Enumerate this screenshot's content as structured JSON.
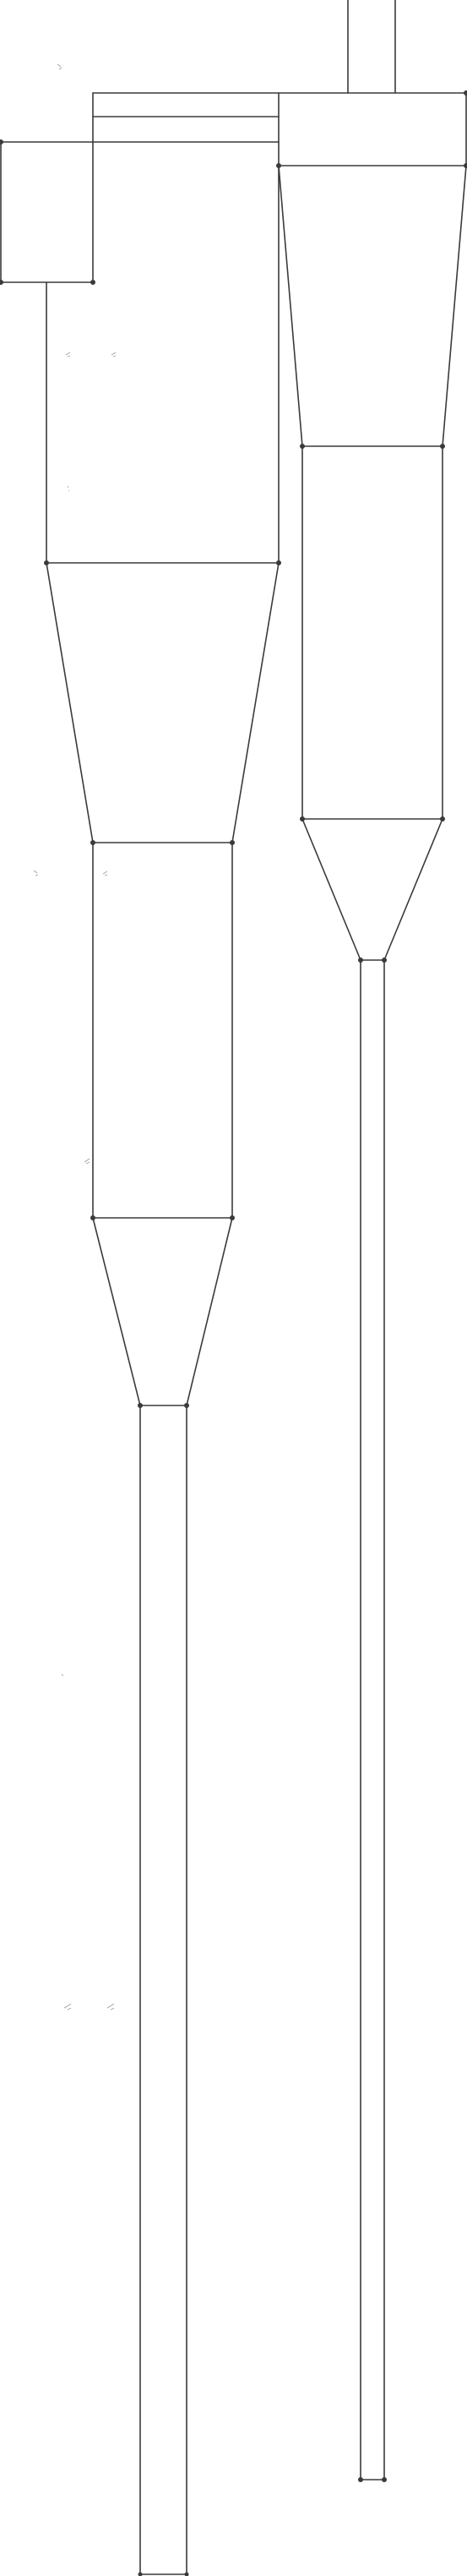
{
  "drawing": {
    "components": [
      "left-cyclone-inlet-duct",
      "left-cyclone-body",
      "left-cyclone-cone",
      "left-cyclone-lower-cylinder",
      "left-cyclone-lower-cone",
      "left-cyclone-dipleg",
      "right-cyclone-outlet-pipe",
      "right-cyclone-top-box",
      "right-cyclone-cone",
      "right-cyclone-middle-cylinder",
      "right-cyclone-lower-cone",
      "right-cyclone-dipleg"
    ],
    "colors": {
      "stroke": "#3a3a3a",
      "vertex": "#3a3a3a",
      "faint-mark": "#9a9a9a",
      "background": "#ffffff"
    }
  }
}
